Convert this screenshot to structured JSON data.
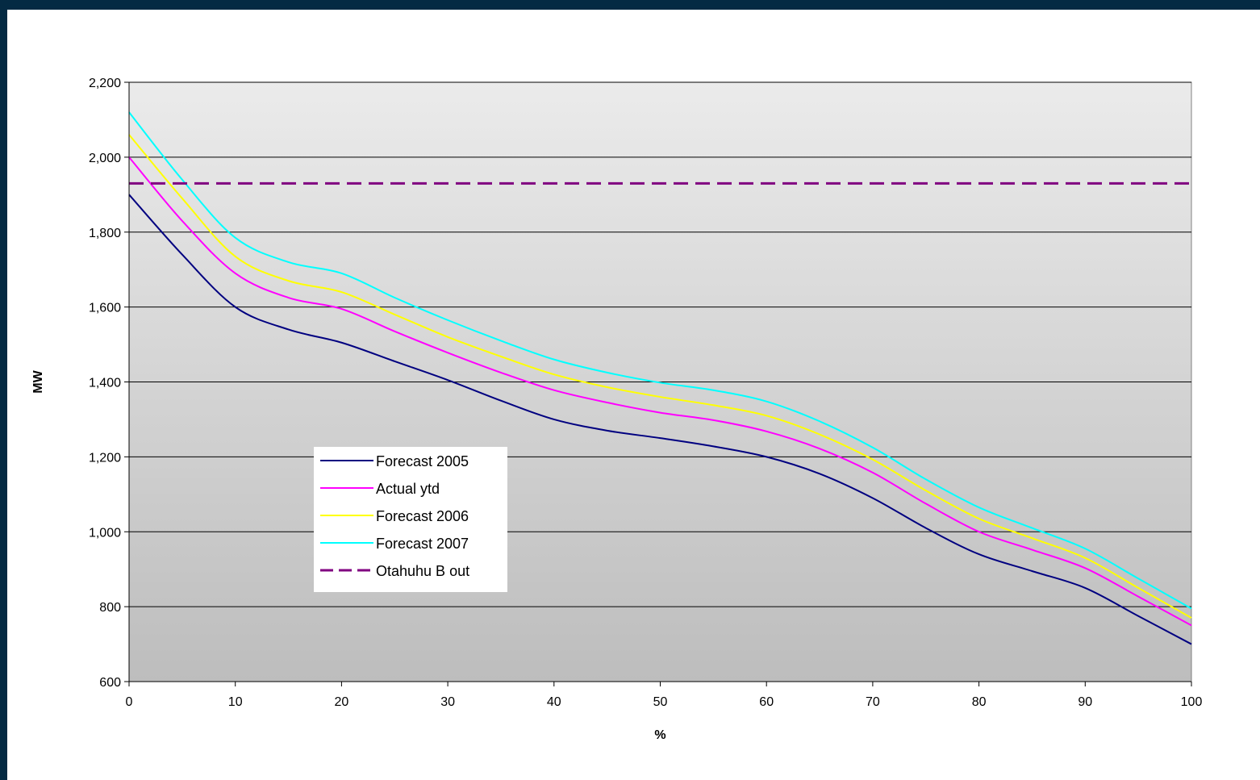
{
  "chart_data": {
    "type": "line",
    "title": "",
    "xlabel": "%",
    "ylabel": "MW",
    "xlim": [
      0,
      100
    ],
    "ylim": [
      600,
      2200
    ],
    "x_ticks": [
      0,
      10,
      20,
      30,
      40,
      50,
      60,
      70,
      80,
      90,
      100
    ],
    "y_ticks": [
      600,
      800,
      1000,
      1200,
      1400,
      1600,
      1800,
      2000,
      2200
    ],
    "x_tick_labels": [
      "0",
      "10",
      "20",
      "30",
      "40",
      "50",
      "60",
      "70",
      "80",
      "90",
      "100"
    ],
    "y_tick_labels": [
      "600",
      "800",
      "1,000",
      "1,200",
      "1,400",
      "1,600",
      "1,800",
      "2,000",
      "2,200"
    ],
    "grid": "horizontal",
    "legend_position": "center-left",
    "series": [
      {
        "name": "Forecast 2005",
        "color": "#000080",
        "style": "solid",
        "x": [
          0,
          5,
          10,
          15,
          20,
          25,
          30,
          35,
          40,
          45,
          50,
          55,
          60,
          65,
          70,
          75,
          80,
          85,
          90,
          95,
          100
        ],
        "y": [
          1900,
          1740,
          1600,
          1540,
          1505,
          1455,
          1405,
          1350,
          1300,
          1270,
          1250,
          1228,
          1200,
          1155,
          1090,
          1010,
          940,
          895,
          850,
          775,
          700
        ]
      },
      {
        "name": "Actual ytd",
        "color": "#ff00ff",
        "style": "solid",
        "x": [
          0,
          5,
          10,
          15,
          20,
          25,
          30,
          35,
          40,
          45,
          50,
          55,
          60,
          65,
          70,
          75,
          80,
          85,
          90,
          95,
          100
        ],
        "y": [
          2000,
          1830,
          1690,
          1625,
          1595,
          1535,
          1478,
          1425,
          1378,
          1345,
          1318,
          1298,
          1268,
          1222,
          1158,
          1075,
          1000,
          952,
          903,
          827,
          750
        ]
      },
      {
        "name": "Forecast 2006",
        "color": "#ffff00",
        "style": "solid",
        "x": [
          0,
          5,
          10,
          15,
          20,
          25,
          30,
          35,
          40,
          45,
          50,
          55,
          60,
          65,
          70,
          75,
          80,
          85,
          90,
          95,
          100
        ],
        "y": [
          2060,
          1890,
          1735,
          1670,
          1640,
          1580,
          1520,
          1468,
          1420,
          1386,
          1360,
          1338,
          1310,
          1260,
          1193,
          1110,
          1035,
          983,
          930,
          850,
          770
        ]
      },
      {
        "name": "Forecast 2007",
        "color": "#00ffff",
        "style": "solid",
        "x": [
          0,
          5,
          10,
          15,
          20,
          25,
          30,
          35,
          40,
          45,
          50,
          55,
          60,
          65,
          70,
          75,
          80,
          85,
          90,
          95,
          100
        ],
        "y": [
          2120,
          1940,
          1785,
          1720,
          1690,
          1625,
          1565,
          1510,
          1460,
          1425,
          1398,
          1378,
          1348,
          1295,
          1225,
          1140,
          1065,
          1010,
          955,
          875,
          795
        ]
      },
      {
        "name": "Otahuhu B out",
        "color": "#800080",
        "style": "dashed",
        "x": [
          0,
          100
        ],
        "y": [
          1930,
          1930
        ]
      }
    ]
  }
}
